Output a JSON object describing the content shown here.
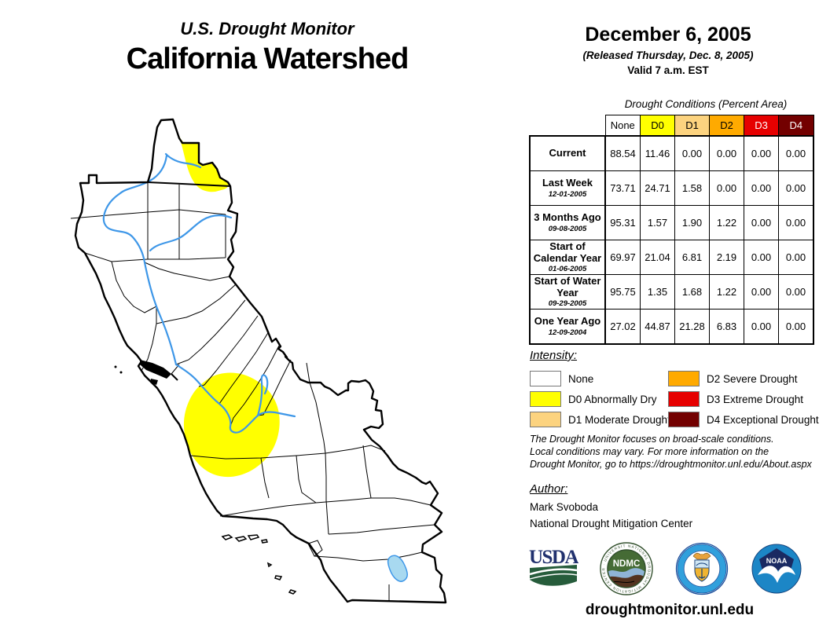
{
  "header": {
    "supertitle": "U.S. Drought Monitor",
    "title": "California Watershed"
  },
  "date_block": {
    "date": "December 6, 2005",
    "released": "(Released Thursday, Dec. 8, 2005)",
    "valid": "Valid 7 a.m. EST"
  },
  "table": {
    "title": "Drought Conditions (Percent Area)",
    "columns": [
      "None",
      "D0",
      "D1",
      "D2",
      "D3",
      "D4"
    ],
    "column_colors": {
      "None": "#FFFFFF",
      "D0": "#FFFF00",
      "D1": "#FCD37F",
      "D2": "#FFAA00",
      "D3": "#E60000",
      "D4": "#730000"
    },
    "rows": [
      {
        "label": "Current",
        "sublabel": "",
        "values": [
          "88.54",
          "11.46",
          "0.00",
          "0.00",
          "0.00",
          "0.00"
        ]
      },
      {
        "label": "Last Week",
        "sublabel": "12-01-2005",
        "values": [
          "73.71",
          "24.71",
          "1.58",
          "0.00",
          "0.00",
          "0.00"
        ]
      },
      {
        "label": "3 Months Ago",
        "sublabel": "09-08-2005",
        "values": [
          "95.31",
          "1.57",
          "1.90",
          "1.22",
          "0.00",
          "0.00"
        ]
      },
      {
        "label": "Start of Calendar Year",
        "sublabel": "01-06-2005",
        "values": [
          "69.97",
          "21.04",
          "6.81",
          "2.19",
          "0.00",
          "0.00"
        ]
      },
      {
        "label": "Start of Water Year",
        "sublabel": "09-29-2005",
        "values": [
          "95.75",
          "1.35",
          "1.68",
          "1.22",
          "0.00",
          "0.00"
        ]
      },
      {
        "label": "One Year Ago",
        "sublabel": "12-09-2004",
        "values": [
          "27.02",
          "44.87",
          "21.28",
          "6.83",
          "0.00",
          "0.00"
        ]
      }
    ]
  },
  "legend": {
    "heading": "Intensity:",
    "items": [
      {
        "label": "None",
        "color": "#FFFFFF"
      },
      {
        "label": "D0 Abnormally Dry",
        "color": "#FFFF00"
      },
      {
        "label": "D1 Moderate Drought",
        "color": "#FCD37F"
      },
      {
        "label": "D2 Severe Drought",
        "color": "#FFAA00"
      },
      {
        "label": "D3 Extreme Drought",
        "color": "#E60000"
      },
      {
        "label": "D4 Exceptional Drought",
        "color": "#730000"
      }
    ]
  },
  "disclaimer_lines": [
    "The Drought Monitor focuses on broad-scale conditions.",
    "Local conditions may vary. For more information on the",
    "Drought Monitor, go to https://droughtmonitor.unl.edu/About.aspx"
  ],
  "author": {
    "heading": "Author:",
    "name": "Mark Svoboda",
    "org": "National Drought Mitigation Center"
  },
  "logos": {
    "usda_text": "USDA",
    "ndmc_text": "NDMC",
    "ndmc_ring_text": "NATIONAL DROUGHT MITIGATION CENTER · UNIVERSITY OF NEBRASKA",
    "noaa_text": "NOAA"
  },
  "footer": {
    "url": "droughtmonitor.unl.edu"
  },
  "map": {
    "d0_color": "#FFFF00",
    "river_color": "#3E97E8",
    "lake_fill": "#A8D9F0",
    "boundary_color": "#000000"
  }
}
